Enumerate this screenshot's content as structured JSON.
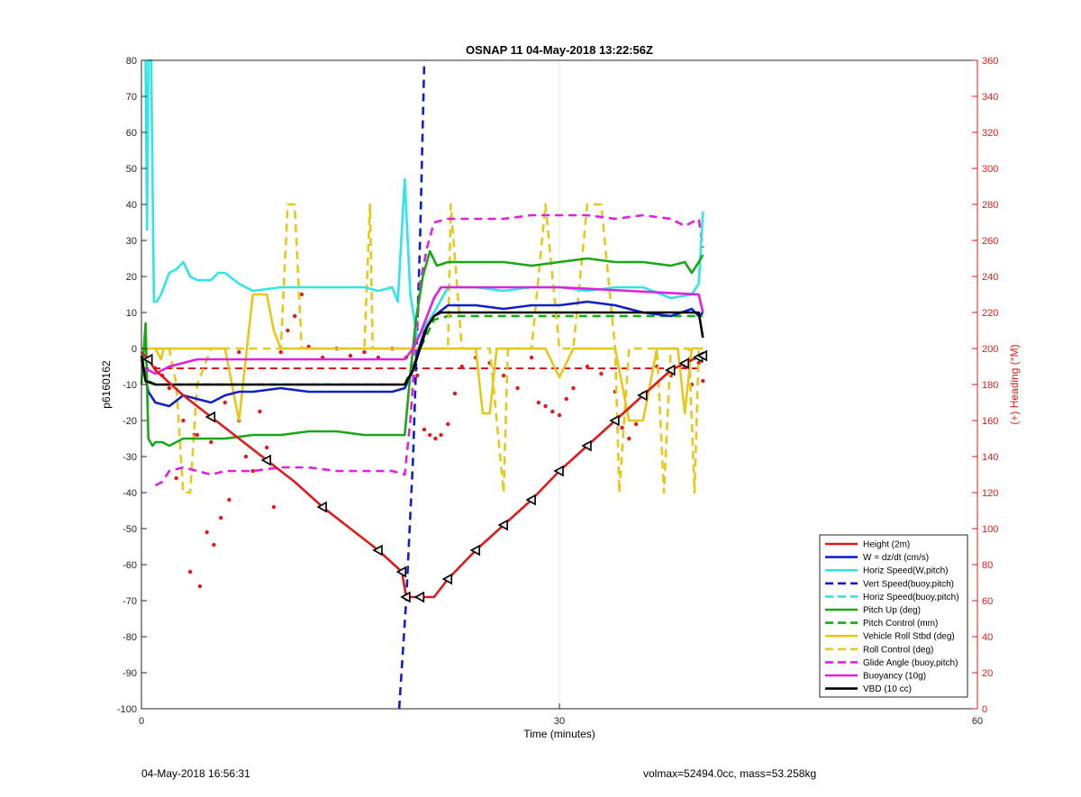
{
  "chart_data": {
    "type": "line",
    "title": "OSNAP 11 04-May-2018 13:22:56Z",
    "xlabel": "Time (minutes)",
    "ylabel": "p6160162",
    "y2label": "(+) Heading (°M)",
    "xlim": [
      0,
      60
    ],
    "ylim": [
      -100,
      80
    ],
    "y2lim": [
      0,
      360
    ],
    "xticks": [
      "0",
      "30",
      "60"
    ],
    "yticks": [
      "80",
      "70",
      "60",
      "50",
      "40",
      "30",
      "20",
      "10",
      "0",
      "-10",
      "-20",
      "-30",
      "-40",
      "-50",
      "-60",
      "-70",
      "-80",
      "-90",
      "-100"
    ],
    "y2ticks": [
      "360",
      "340",
      "320",
      "300",
      "280",
      "260",
      "240",
      "220",
      "200",
      "180",
      "160",
      "140",
      "120",
      "100",
      "80",
      "60",
      "40",
      "20",
      "0"
    ],
    "grid": "vertical",
    "legend_position": "bottom-right",
    "colors": {
      "red": "#e01a1a",
      "blue": "#1020c8",
      "cyan": "#2ee6e6",
      "green": "#18a818",
      "yellow": "#e6c81a",
      "magenta": "#e020e0",
      "black": "#000000",
      "heading": "#e01a1a"
    },
    "series": [
      {
        "name": "Height (2m)",
        "color": "red",
        "dash": false,
        "x": [
          0,
          0.5,
          1,
          3,
          5,
          7,
          9,
          11,
          13,
          15,
          17,
          18.7,
          19,
          20,
          21,
          22,
          24,
          26,
          28,
          30,
          32,
          34,
          36,
          38,
          39.6,
          40.3
        ],
        "y": [
          -1,
          -3,
          -6,
          -13,
          -19,
          -25,
          -31,
          -37,
          -44,
          -50,
          -56,
          -62,
          -69,
          -69,
          -69,
          -64,
          -56,
          -49,
          -42,
          -34,
          -27,
          -20,
          -13,
          -6,
          -3,
          -2
        ]
      },
      {
        "name": "W = dz/dt (cm/s)",
        "color": "blue",
        "dash": false,
        "x": [
          0,
          0.5,
          1,
          2,
          3,
          4,
          5,
          6,
          7,
          8,
          10,
          12,
          14,
          16,
          18,
          18.9,
          19.5,
          20,
          20.5,
          21,
          22,
          24,
          26,
          28,
          30,
          32,
          34,
          36,
          38,
          39.5,
          40,
          40.3
        ],
        "y": [
          -3,
          -12,
          -15,
          -16,
          -13,
          -14,
          -15,
          -13,
          -12,
          -12,
          -11,
          -12,
          -12,
          -12,
          -12,
          -11,
          -6,
          1,
          7,
          9,
          12,
          12,
          11,
          12,
          12,
          13,
          12,
          10,
          9,
          11,
          9,
          10
        ]
      },
      {
        "name": "Horiz Speed(W,pitch)",
        "color": "cyan",
        "dash": false,
        "x": [
          0.3,
          0.4,
          0.5,
          0.7,
          0.9,
          1.1,
          1.4,
          2,
          2.5,
          3,
          3.5,
          4,
          4.5,
          5,
          5.5,
          6,
          7,
          8,
          10,
          12,
          14,
          16,
          17,
          18,
          18.4,
          18.9,
          19.3,
          19.8,
          20,
          21,
          22,
          24,
          26,
          28,
          30,
          32,
          34,
          36,
          38,
          39.5,
          40,
          40.3
        ],
        "y": [
          80,
          33,
          80,
          80,
          13,
          13,
          15,
          21,
          22,
          24,
          20,
          19,
          19,
          19,
          21,
          21,
          18,
          16,
          17,
          17,
          17,
          17,
          16,
          17,
          13,
          47,
          15,
          3,
          4,
          10,
          17,
          17,
          16,
          17,
          17,
          16,
          17,
          17,
          14,
          15,
          18,
          38
        ]
      },
      {
        "name": "Vert Speed(buoy,pitch)",
        "color": "blue",
        "dash": true,
        "x": [
          18.5,
          19.0,
          19.5,
          20.0,
          20.3
        ],
        "y": [
          -100,
          -70,
          -30,
          30,
          80
        ]
      },
      {
        "name": "Horiz Speed(buoy,pitch)",
        "color": "cyan",
        "dash": true,
        "x": [],
        "y": []
      },
      {
        "name": "Pitch Up (deg)",
        "color": "green",
        "dash": false,
        "x": [
          0,
          0.3,
          0.5,
          0.8,
          1,
          1.5,
          2,
          3,
          4,
          6,
          8,
          10,
          12,
          14,
          16,
          18,
          18.9,
          19.3,
          19.7,
          20.2,
          20.7,
          21.2,
          22,
          24,
          26,
          28,
          30,
          32,
          34,
          36,
          38,
          39,
          39.5,
          40,
          40.3
        ],
        "y": [
          -10,
          7,
          -25,
          -27,
          -26,
          -26,
          -27,
          -25,
          -25,
          -25,
          -24,
          -24,
          -23,
          -23,
          -24,
          -24,
          -24,
          -7,
          8,
          20,
          27,
          23,
          24,
          24,
          24,
          23,
          24,
          25,
          24,
          24,
          23,
          24,
          21,
          24,
          26
        ]
      },
      {
        "name": "Pitch Control (mm)",
        "color": "green",
        "dash": true,
        "x": [
          0,
          0.5,
          1,
          5,
          10,
          15,
          18.9,
          20,
          21,
          22,
          30,
          40.3
        ],
        "y": [
          -2,
          -9,
          -10,
          -10,
          -10,
          -10,
          -10,
          0,
          8,
          9,
          9,
          9
        ]
      },
      {
        "name": "Vehicle Roll Stbd (deg)",
        "color": "yellow",
        "dash": false,
        "x": [
          0,
          1,
          1.4,
          1.6,
          2,
          3,
          4,
          5,
          6,
          7,
          8,
          9,
          9.5,
          10,
          11,
          12,
          14,
          16,
          18,
          18.9,
          20,
          21,
          22,
          23,
          24,
          24.5,
          25,
          25.5,
          26,
          27,
          28,
          29,
          30,
          31,
          32,
          33,
          34,
          35,
          36,
          37,
          38,
          38.5,
          39,
          39.5,
          40,
          40.3
        ],
        "y": [
          0,
          0,
          -3,
          0,
          0,
          0,
          0,
          0,
          0,
          -20,
          15,
          15,
          5,
          0,
          0,
          0,
          0,
          0,
          0,
          0,
          0,
          0,
          0,
          0,
          0,
          -18,
          -18,
          0,
          0,
          0,
          0,
          0,
          -8,
          0,
          0,
          0,
          0,
          -20,
          -20,
          0,
          0,
          0,
          -18,
          0,
          0,
          0
        ]
      },
      {
        "name": "Roll Control (deg)",
        "color": "yellow",
        "dash": true,
        "x": [
          0,
          1,
          2,
          2.5,
          3,
          3.5,
          4,
          5,
          5.5,
          6,
          6.5,
          7,
          8,
          10,
          10.5,
          11,
          11.5,
          12,
          14,
          16,
          16.4,
          16.6,
          17,
          18,
          19,
          20,
          21,
          22,
          22.2,
          23,
          24,
          25,
          26,
          26.3,
          27,
          28,
          29,
          30,
          30.5,
          31,
          32,
          33,
          34,
          34.3,
          35,
          36,
          37,
          37.5,
          38,
          39,
          39.3,
          39.7,
          40,
          40.3
        ],
        "y": [
          0,
          0,
          0,
          -10,
          -40,
          -40,
          -10,
          0,
          0,
          0,
          0,
          0,
          0,
          0,
          40,
          40,
          0,
          0,
          0,
          0,
          40,
          0,
          0,
          0,
          0,
          0,
          0,
          0,
          40,
          0,
          0,
          0,
          -40,
          0,
          0,
          0,
          40,
          0,
          0,
          0,
          40,
          40,
          0,
          -40,
          0,
          0,
          0,
          -40,
          0,
          0,
          0,
          -40,
          0,
          0
        ]
      },
      {
        "name": "Glide Angle (buoy,pitch)",
        "color": "magenta",
        "dash": true,
        "x": [
          1,
          1.5,
          2,
          3,
          4,
          5,
          6,
          8,
          10,
          12,
          14,
          16,
          18,
          18.9,
          19.3,
          19.7,
          20,
          20.5,
          21,
          22,
          24,
          26,
          28,
          30,
          32,
          34,
          36,
          38,
          39,
          39.5,
          40,
          40.3
        ],
        "y": [
          -38,
          -37,
          -34,
          -33,
          -34,
          -35,
          -34,
          -34,
          -33,
          -33,
          -34,
          -34,
          -34,
          -35,
          -20,
          2,
          18,
          28,
          35,
          36,
          36,
          36,
          37,
          37,
          37,
          36,
          37,
          36,
          34,
          35,
          36,
          28
        ]
      },
      {
        "name": "Buoyancy (10g)",
        "color": "magenta",
        "dash": false,
        "x": [
          0,
          1,
          2,
          4,
          6,
          10,
          15,
          18.9,
          19.5,
          20,
          20.5,
          21,
          21.5,
          22,
          25,
          30,
          35,
          40,
          40.3
        ],
        "y": [
          -5,
          -7,
          -5,
          -3,
          -3,
          -3,
          -3,
          -3,
          0,
          4,
          9,
          14,
          17,
          17,
          17,
          17,
          16,
          15,
          10
        ]
      },
      {
        "name": "VBD (10 cc)",
        "color": "black",
        "dash": false,
        "x": [
          0,
          0.3,
          1,
          3,
          5,
          10,
          15,
          18.9,
          19.5,
          20,
          20.5,
          21,
          21.5,
          22,
          25,
          30,
          35,
          40,
          40.3
        ],
        "y": [
          -2,
          -9,
          -10,
          -10,
          -10,
          -10,
          -10,
          -10,
          -6,
          0,
          6,
          9,
          10,
          10,
          10,
          10,
          10,
          10,
          3
        ]
      }
    ],
    "heading_line": {
      "name": "Heading",
      "y2": 189,
      "x": [
        0,
        40.3
      ]
    },
    "heading_dots": [
      [
        1,
        189
      ],
      [
        1.5,
        185
      ],
      [
        2,
        178
      ],
      [
        3,
        160
      ],
      [
        4,
        152
      ],
      [
        5,
        148
      ],
      [
        6,
        170
      ],
      [
        7,
        160
      ],
      [
        7.5,
        140
      ],
      [
        8,
        132
      ],
      [
        9,
        145
      ],
      [
        9.5,
        112
      ],
      [
        10,
        198
      ],
      [
        10.5,
        210
      ],
      [
        11,
        218
      ],
      [
        11.5,
        230
      ],
      [
        12,
        201
      ],
      [
        13,
        195
      ],
      [
        14,
        200
      ],
      [
        15,
        196
      ],
      [
        16,
        198
      ],
      [
        17,
        195
      ],
      [
        18,
        200
      ],
      [
        19,
        195
      ],
      [
        19.8,
        185
      ],
      [
        20.3,
        155
      ],
      [
        20.7,
        152
      ],
      [
        21.1,
        150
      ],
      [
        21.5,
        152
      ],
      [
        22,
        158
      ],
      [
        22.5,
        175
      ],
      [
        23,
        190
      ],
      [
        24,
        195
      ],
      [
        25,
        192
      ],
      [
        26,
        185
      ],
      [
        27,
        178
      ],
      [
        28,
        195
      ],
      [
        28.5,
        170
      ],
      [
        29,
        168
      ],
      [
        29.5,
        165
      ],
      [
        30,
        163
      ],
      [
        30.5,
        172
      ],
      [
        31,
        178
      ],
      [
        32,
        190
      ],
      [
        33,
        186
      ],
      [
        34,
        176
      ],
      [
        34.5,
        156
      ],
      [
        35,
        150
      ],
      [
        35.5,
        158
      ],
      [
        36,
        175
      ],
      [
        37,
        190
      ],
      [
        38,
        185
      ],
      [
        39,
        190
      ],
      [
        39.5,
        180
      ],
      [
        40,
        192
      ],
      [
        40.3,
        182
      ],
      [
        2.5,
        128
      ],
      [
        3.5,
        76
      ],
      [
        4.2,
        68
      ],
      [
        4.7,
        98
      ],
      [
        5.2,
        91
      ],
      [
        5.7,
        106
      ],
      [
        6.3,
        116
      ],
      [
        3.8,
        152
      ],
      [
        7,
        198
      ],
      [
        8.5,
        165
      ]
    ],
    "height_markers_x": [
      0.5,
      5,
      9,
      13,
      17,
      18.7,
      19,
      20,
      22,
      24,
      26,
      28,
      30,
      32,
      34,
      36,
      38,
      39,
      40,
      40.3
    ],
    "legend": {
      "entries": [
        "Height (2m)",
        "W = dz/dt (cm/s)",
        "Horiz Speed(W,pitch)",
        "Vert Speed(buoy,pitch)",
        "Horiz Speed(buoy,pitch)",
        "Pitch Up (deg)",
        "Pitch Control (mm)",
        "Vehicle Roll Stbd (deg)",
        "Roll Control (deg)",
        "Glide Angle (buoy,pitch)",
        "Buoyancy (10g)",
        "VBD (10 cc)"
      ]
    }
  },
  "footer": {
    "left": "04-May-2018 16:56:31",
    "right": "volmax=52494.0cc, mass=53.258kg"
  }
}
